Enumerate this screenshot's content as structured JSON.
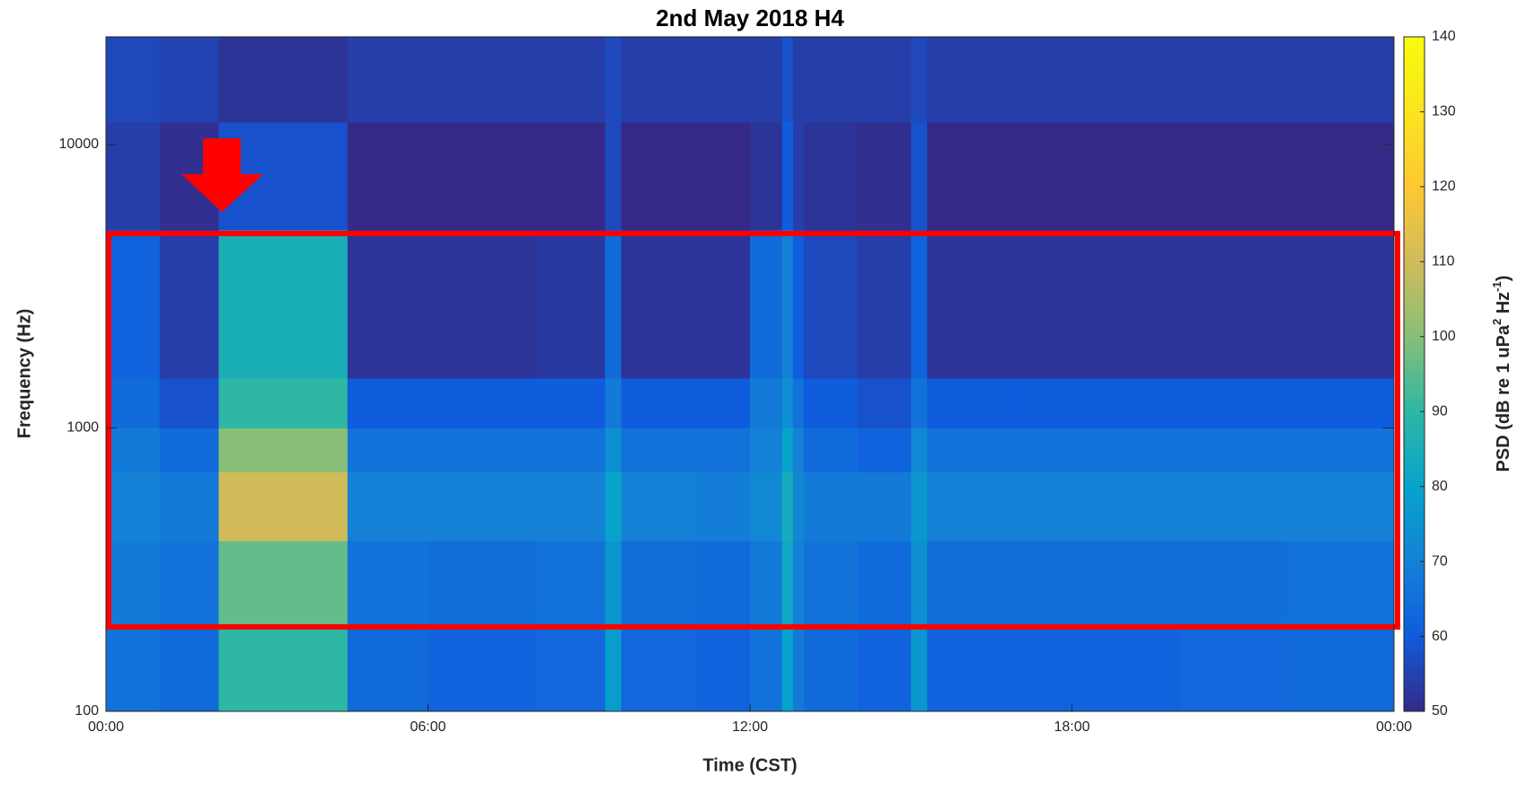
{
  "chart_data": {
    "type": "heatmap",
    "title": "2nd May 2018 H4",
    "x_label": "Time (CST)",
    "y_label": "Frequency (Hz)",
    "colorbar_label": [
      "PSD (dB re 1 uPa",
      "2",
      " Hz",
      "-1",
      ")"
    ],
    "xlim": [
      0,
      24
    ],
    "xticks": [
      {
        "value": 0,
        "label": "00:00"
      },
      {
        "value": 6,
        "label": "06:00"
      },
      {
        "value": 12,
        "label": "12:00"
      },
      {
        "value": 18,
        "label": "18:00"
      },
      {
        "value": 24,
        "label": "00:00"
      }
    ],
    "ylim": [
      100,
      24000
    ],
    "yticks": [
      100,
      1000,
      10000
    ],
    "ylog": true,
    "clim": [
      50,
      140
    ],
    "cticks": [
      50,
      60,
      70,
      80,
      90,
      100,
      110,
      120,
      130,
      140
    ],
    "colormap": [
      "#352a87",
      "#0f5cdd",
      "#1481d6",
      "#06a4ca",
      "#2eb7a4",
      "#87bf77",
      "#d1bb59",
      "#fec832",
      "#f9e51e",
      "#f9fb0e"
    ],
    "time_edges": [
      0,
      1,
      2.1,
      4.5,
      6,
      8,
      9.3,
      9.6,
      11,
      12,
      12.6,
      12.8,
      13,
      14,
      15,
      15.3,
      17,
      20,
      22,
      24
    ],
    "freq_edges": [
      100,
      200,
      400,
      700,
      1000,
      1500,
      5000,
      12000,
      24000
    ],
    "values": [
      [
        66,
        68,
        70,
        68,
        64,
        62,
        54,
        56
      ],
      [
        64,
        66,
        68,
        64,
        58,
        54,
        51,
        55
      ],
      [
        90,
        96,
        110,
        100,
        90,
        85,
        58,
        52
      ],
      [
        64,
        66,
        70,
        66,
        60,
        52,
        50,
        54
      ],
      [
        62,
        65,
        70,
        66,
        60,
        52,
        50,
        54
      ],
      [
        63,
        66,
        70,
        66,
        60,
        53,
        50,
        54
      ],
      [
        78,
        76,
        80,
        74,
        68,
        64,
        56,
        56
      ],
      [
        63,
        65,
        70,
        66,
        60,
        52,
        50,
        54
      ],
      [
        62,
        64,
        69,
        66,
        60,
        52,
        50,
        54
      ],
      [
        66,
        68,
        72,
        70,
        68,
        64,
        52,
        54
      ],
      [
        80,
        82,
        84,
        80,
        74,
        70,
        60,
        58
      ],
      [
        68,
        70,
        72,
        70,
        66,
        60,
        54,
        54
      ],
      [
        64,
        66,
        68,
        64,
        60,
        56,
        52,
        54
      ],
      [
        62,
        64,
        68,
        62,
        58,
        54,
        51,
        54
      ],
      [
        76,
        74,
        76,
        72,
        66,
        62,
        58,
        56
      ],
      [
        62,
        65,
        70,
        66,
        60,
        52,
        50,
        54
      ],
      [
        62,
        65,
        70,
        66,
        60,
        52,
        50,
        54
      ],
      [
        63,
        65,
        70,
        66,
        60,
        52,
        50,
        54
      ],
      [
        64,
        66,
        70,
        66,
        60,
        52,
        50,
        54
      ]
    ]
  }
}
